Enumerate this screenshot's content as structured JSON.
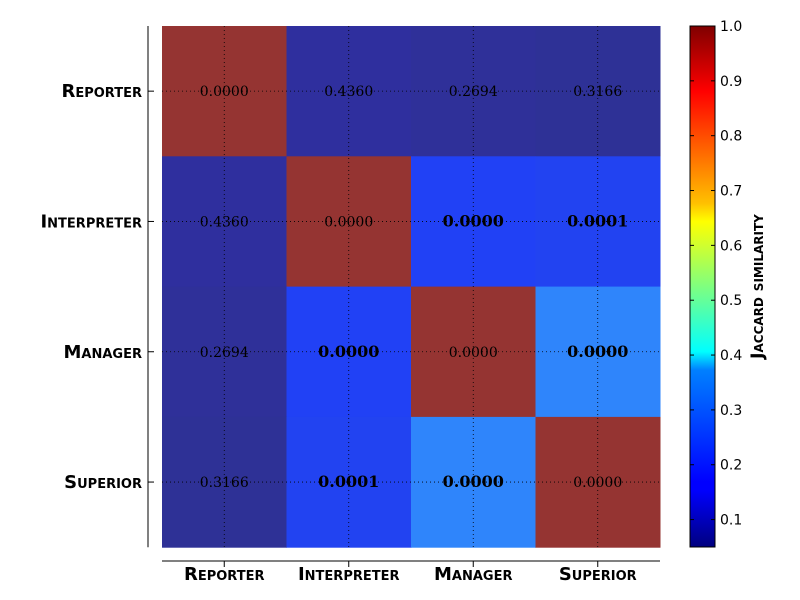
{
  "chart_data": {
    "type": "heatmap",
    "row_categories": [
      "Reporter",
      "Interpreter",
      "Manager",
      "Superior"
    ],
    "col_categories": [
      "Reporter",
      "Interpreter",
      "Manager",
      "Superior"
    ],
    "values": [
      [
        0.0,
        0.436,
        0.2694,
        0.3166
      ],
      [
        0.436,
        0.0,
        0.0,
        0.0001
      ],
      [
        0.2694,
        0.0,
        0.0,
        0.0
      ],
      [
        0.3166,
        0.0001,
        0.0,
        0.0
      ]
    ],
    "cell_labels": [
      [
        "0.0000",
        "0.4360",
        "0.2694",
        "0.3166"
      ],
      [
        "0.4360",
        "0.0000",
        "0.0000",
        "0.0001"
      ],
      [
        "0.2694",
        "0.0000",
        "0.0000",
        "0.0000"
      ],
      [
        "0.3166",
        "0.0001",
        "0.0000",
        "0.0000"
      ]
    ],
    "bold_labels": [
      [
        false,
        false,
        false,
        false
      ],
      [
        false,
        false,
        true,
        true
      ],
      [
        false,
        true,
        false,
        true
      ],
      [
        false,
        true,
        true,
        false
      ]
    ],
    "cell_colors": [
      [
        "#953432",
        "#2f2f9e",
        "#2f3099",
        "#2e3196"
      ],
      [
        "#2f2f9e",
        "#953432",
        "#2141f5",
        "#2243f1"
      ],
      [
        "#2f3099",
        "#2141f5",
        "#953432",
        "#2f85fb"
      ],
      [
        "#2e3196",
        "#2243f1",
        "#2f85fb",
        "#953432"
      ]
    ],
    "colorbar": {
      "label": "Jaccard similarity",
      "range": [
        0.05,
        1.0
      ],
      "ticks": [
        "0.1",
        "0.2",
        "0.3",
        "0.4",
        "0.5",
        "0.6",
        "0.7",
        "0.8",
        "0.9",
        "1.0"
      ],
      "tick_values": [
        0.1,
        0.2,
        0.3,
        0.4,
        0.5,
        0.6,
        0.7,
        0.8,
        0.9,
        1.0
      ],
      "colormap": "jet"
    },
    "grid": true
  }
}
